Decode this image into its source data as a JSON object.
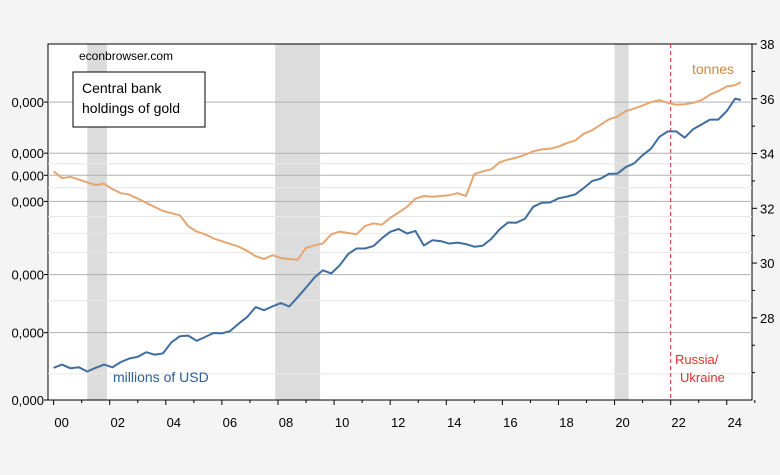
{
  "chart_data": {
    "type": "line",
    "source_note": "econbrowser.com",
    "legend_title": "Central bank holdings of gold",
    "annotation": "Russia/ Ukraine",
    "annotation_x": 2022.0,
    "x_tick_labels": [
      "00",
      "02",
      "04",
      "06",
      "08",
      "10",
      "12",
      "14",
      "16",
      "18",
      "20",
      "22",
      "24"
    ],
    "x_tick_values": [
      2000,
      2002,
      2004,
      2006,
      2008,
      2010,
      2012,
      2014,
      2016,
      2018,
      2020,
      2022,
      2024
    ],
    "xlim": [
      1999.8,
      2024.9
    ],
    "left_axis": {
      "scale": "log",
      "tick_labels": [
        "0,000",
        "0,000",
        "0,000",
        "0,000",
        "0,000",
        "0,000",
        "0,000"
      ],
      "ylim": [
        250000,
        3000000
      ],
      "note": "tick labels truncated at left edge in source image"
    },
    "right_axis": {
      "scale": "linear",
      "tick_labels": [
        "38",
        "36",
        "34",
        "32",
        "30",
        "28"
      ],
      "tick_values": [
        38000,
        36000,
        34000,
        32000,
        30000,
        28000
      ],
      "ylim": [
        25000,
        38000
      ]
    },
    "recessions": [
      [
        2001.2,
        2001.9
      ],
      [
        2007.9,
        2009.5
      ],
      [
        2020.0,
        2020.5
      ]
    ],
    "series": [
      {
        "name": "millions of USD",
        "axis": "left",
        "color": "#3f6e9e",
        "x": [
          2000.0,
          2000.3,
          2000.6,
          2000.9,
          2001.2,
          2001.5,
          2001.8,
          2002.1,
          2002.4,
          2002.7,
          2003.0,
          2003.3,
          2003.6,
          2003.9,
          2004.2,
          2004.5,
          2004.8,
          2005.1,
          2005.4,
          2005.7,
          2006.0,
          2006.3,
          2006.6,
          2006.9,
          2007.2,
          2007.5,
          2007.8,
          2008.1,
          2008.4,
          2008.7,
          2009.0,
          2009.3,
          2009.6,
          2009.9,
          2010.2,
          2010.5,
          2010.8,
          2011.1,
          2011.4,
          2011.7,
          2012.0,
          2012.3,
          2012.6,
          2012.9,
          2013.2,
          2013.5,
          2013.8,
          2014.1,
          2014.4,
          2014.7,
          2015.0,
          2015.3,
          2015.6,
          2015.9,
          2016.2,
          2016.5,
          2016.8,
          2017.1,
          2017.4,
          2017.7,
          2018.0,
          2018.3,
          2018.6,
          2018.9,
          2019.2,
          2019.5,
          2019.8,
          2020.1,
          2020.4,
          2020.7,
          2021.0,
          2021.3,
          2021.6,
          2021.9,
          2022.2,
          2022.5,
          2022.8,
          2023.1,
          2023.4,
          2023.7,
          2024.0,
          2024.3,
          2024.5
        ],
        "values": [
          313000,
          320000,
          312000,
          314000,
          305000,
          313000,
          320000,
          314000,
          326000,
          334000,
          338000,
          349000,
          343000,
          346000,
          374000,
          390000,
          392000,
          378000,
          388000,
          399000,
          398000,
          405000,
          426000,
          446000,
          478000,
          468000,
          480000,
          492000,
          480000,
          512000,
          548000,
          588000,
          618000,
          605000,
          640000,
          692000,
          720000,
          720000,
          732000,
          773000,
          809000,
          825000,
          799000,
          814000,
          735000,
          762000,
          758000,
          745000,
          750000,
          742000,
          729000,
          734000,
          769000,
          823000,
          863000,
          862000,
          885000,
          963000,
          990000,
          992000,
          1022000,
          1034000,
          1050000,
          1097000,
          1152000,
          1172000,
          1212000,
          1214000,
          1270000,
          1305000,
          1380000,
          1445000,
          1570000,
          1630000,
          1630000,
          1560000,
          1655000,
          1710000,
          1770000,
          1770000,
          1880000,
          2050000,
          2030000
        ]
      },
      {
        "name": "tonnes",
        "axis": "right",
        "color": "#e5a672",
        "x": [
          2000.0,
          2000.3,
          2000.6,
          2000.9,
          2001.2,
          2001.5,
          2001.8,
          2002.1,
          2002.4,
          2002.7,
          2003.0,
          2003.3,
          2003.6,
          2003.9,
          2004.2,
          2004.5,
          2004.8,
          2005.1,
          2005.4,
          2005.7,
          2006.0,
          2006.3,
          2006.6,
          2006.9,
          2007.2,
          2007.5,
          2007.8,
          2008.1,
          2008.4,
          2008.7,
          2009.0,
          2009.3,
          2009.6,
          2009.9,
          2010.2,
          2010.5,
          2010.8,
          2011.1,
          2011.4,
          2011.7,
          2012.0,
          2012.3,
          2012.6,
          2012.9,
          2013.2,
          2013.5,
          2013.8,
          2014.1,
          2014.4,
          2014.7,
          2015.0,
          2015.3,
          2015.6,
          2015.9,
          2016.2,
          2016.5,
          2016.8,
          2017.1,
          2017.4,
          2017.7,
          2018.0,
          2018.3,
          2018.6,
          2018.9,
          2019.2,
          2019.5,
          2019.8,
          2020.1,
          2020.4,
          2020.7,
          2021.0,
          2021.3,
          2021.6,
          2021.9,
          2022.2,
          2022.5,
          2022.8,
          2023.1,
          2023.4,
          2023.7,
          2024.0,
          2024.3,
          2024.5
        ],
        "values": [
          33350,
          33100,
          33150,
          33050,
          32950,
          32850,
          32900,
          32700,
          32550,
          32500,
          32350,
          32200,
          32050,
          31900,
          31820,
          31750,
          31350,
          31150,
          31050,
          30900,
          30800,
          30700,
          30600,
          30450,
          30250,
          30150,
          30290,
          30180,
          30150,
          30120,
          30550,
          30650,
          30720,
          31050,
          31150,
          31100,
          31050,
          31350,
          31450,
          31400,
          31650,
          31850,
          32050,
          32350,
          32450,
          32420,
          32450,
          32480,
          32550,
          32450,
          33250,
          33350,
          33420,
          33680,
          33780,
          33850,
          33950,
          34080,
          34150,
          34180,
          34250,
          34380,
          34480,
          34720,
          34850,
          35050,
          35250,
          35350,
          35550,
          35650,
          35750,
          35880,
          35950,
          35850,
          35780,
          35800,
          35850,
          35950,
          36150,
          36280,
          36450,
          36500,
          36600
        ]
      }
    ],
    "axis_colors": {
      "left_series_label": "#2e5f95",
      "right_series_label": "#d08a3e",
      "annotation": "#e0302a"
    }
  }
}
